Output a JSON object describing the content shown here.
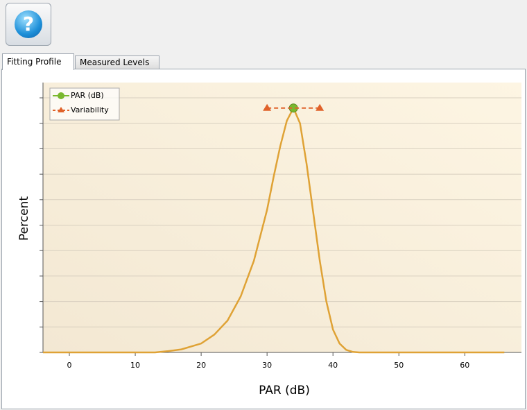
{
  "ui": {
    "help_button": "?",
    "tabs": [
      "Fitting Profile",
      "Measured Levels"
    ]
  },
  "chart_data": {
    "type": "line",
    "xlabel": "PAR (dB)",
    "ylabel": "Percent",
    "xlim": [
      -4,
      68.6
    ],
    "xticks": [
      0,
      10,
      20,
      30,
      40,
      50,
      60
    ],
    "ylim": [
      0,
      10.6
    ],
    "yticks": [
      0,
      1,
      2,
      3,
      4,
      5,
      6,
      7,
      8,
      9,
      10
    ],
    "grid": true,
    "series": [
      {
        "color": "#dfa235",
        "x": [
          -4,
          0,
          5,
          10,
          13,
          15,
          17,
          20,
          22,
          24,
          26,
          28,
          30,
          31,
          32,
          33,
          34,
          35,
          36,
          37,
          38,
          39,
          40,
          41,
          42,
          43,
          44,
          50,
          60,
          66
        ],
        "values": [
          0,
          0,
          0,
          0,
          0,
          0.05,
          0.12,
          0.35,
          0.7,
          1.25,
          2.2,
          3.6,
          5.6,
          6.9,
          8.1,
          9.1,
          9.6,
          9.0,
          7.4,
          5.5,
          3.6,
          2.0,
          0.9,
          0.35,
          0.1,
          0.02,
          0,
          0,
          0,
          0
        ]
      },
      {
        "name": "PAR (dB)",
        "color": "#7ab82e",
        "marker": "circle",
        "x": [
          34
        ],
        "values": [
          9.6
        ]
      },
      {
        "name": "Variability",
        "color": "#e0622a",
        "marker": "triangle",
        "dashed": true,
        "x": [
          30,
          38
        ],
        "values": [
          9.6,
          9.6
        ]
      }
    ],
    "legend": "upper left"
  }
}
